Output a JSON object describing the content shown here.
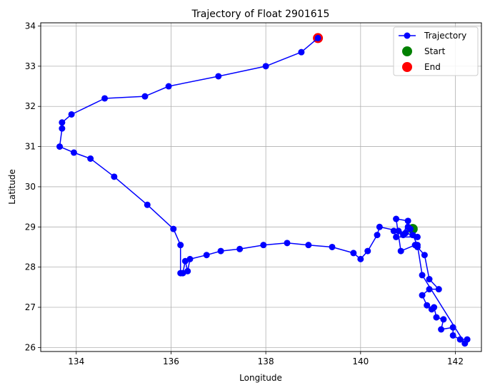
{
  "chart_data": {
    "type": "line",
    "title": "Trajectory of Float 2901615",
    "xlabel": "Longitude",
    "ylabel": "Latitude",
    "xlim": [
      133.25,
      142.55
    ],
    "ylim": [
      25.9,
      34.08
    ],
    "xticks": [
      "134",
      "136",
      "138",
      "140",
      "142"
    ],
    "yticks": [
      "26",
      "27",
      "28",
      "29",
      "30",
      "31",
      "32",
      "33",
      "34"
    ],
    "grid": true,
    "legend_position": "top-right",
    "colors": {
      "trajectory": "#0000ff",
      "start": "#008000",
      "end": "#ff0000"
    },
    "series": [
      {
        "name": "Trajectory",
        "x": [
          141.05,
          141.0,
          140.95,
          141.1,
          141.2,
          140.75,
          140.7,
          140.9,
          141.0,
          140.75,
          140.85,
          141.15,
          141.2,
          141.35,
          141.45,
          141.65,
          141.45,
          141.3,
          141.4,
          141.5,
          141.55,
          141.6,
          141.75,
          141.7,
          141.95,
          141.95,
          142.1,
          142.25,
          142.2,
          141.3,
          141.2,
          141.1,
          140.95,
          140.8,
          140.4,
          140.35,
          140.15,
          140.0,
          139.85,
          139.4,
          138.9,
          138.45,
          137.95,
          137.45,
          137.05,
          136.75,
          136.4,
          136.35,
          136.3,
          136.25,
          136.2,
          136.2,
          136.05,
          135.5,
          134.8,
          134.3,
          133.95,
          133.65,
          133.7,
          133.7,
          133.9,
          134.6,
          135.45,
          135.95,
          137.0,
          138.0,
          138.75,
          139.1
        ],
        "y": [
          28.95,
          29.0,
          28.85,
          28.8,
          28.75,
          28.75,
          28.9,
          28.8,
          29.15,
          29.2,
          28.4,
          28.55,
          28.5,
          28.3,
          27.7,
          27.45,
          27.45,
          27.3,
          27.05,
          26.95,
          27.0,
          26.75,
          26.7,
          26.45,
          26.5,
          26.3,
          26.2,
          26.2,
          26.1,
          27.8,
          28.55,
          28.8,
          28.85,
          28.9,
          29.0,
          28.8,
          28.4,
          28.2,
          28.35,
          28.5,
          28.55,
          28.6,
          28.55,
          28.45,
          28.4,
          28.3,
          28.2,
          27.9,
          28.15,
          27.85,
          27.85,
          28.55,
          28.95,
          29.55,
          30.25,
          30.7,
          30.85,
          31.0,
          31.45,
          31.6,
          31.8,
          32.2,
          32.25,
          32.5,
          32.75,
          33.0,
          33.35,
          33.7
        ]
      },
      {
        "name": "Start",
        "x": [
          141.1
        ],
        "y": [
          28.95
        ]
      },
      {
        "name": "End",
        "x": [
          139.1
        ],
        "y": [
          33.7
        ]
      }
    ]
  }
}
